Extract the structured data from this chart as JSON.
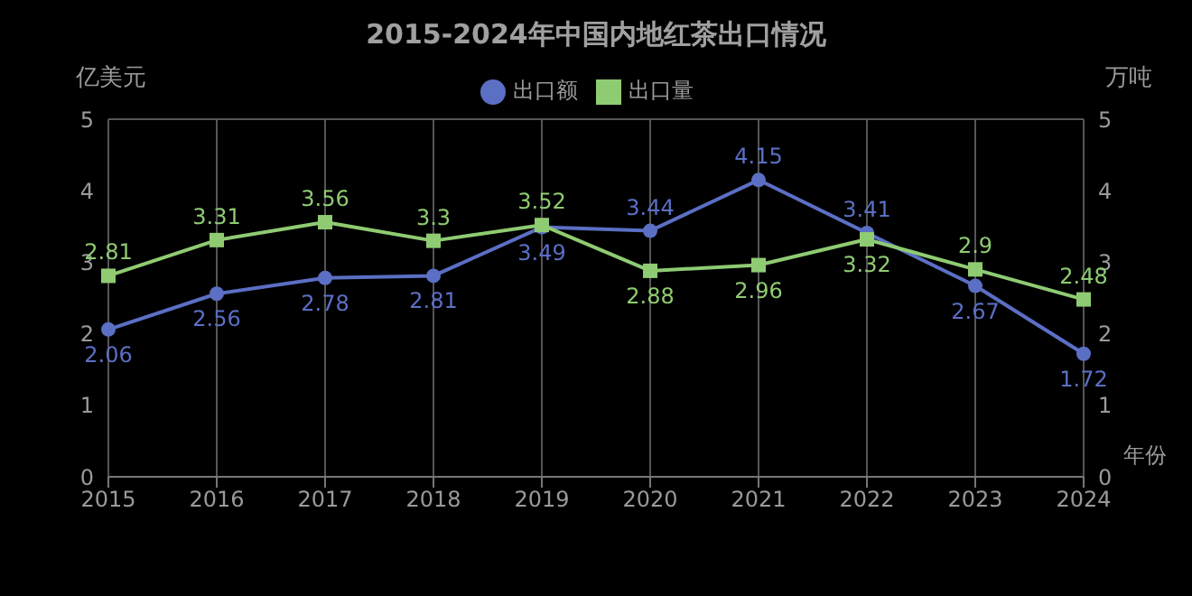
{
  "chart_data": {
    "type": "line",
    "title": "2015-2024年中国内地红茶出口情况",
    "xlabel": "年份",
    "ylabel": "亿美元",
    "y2label": "万吨",
    "categories": [
      "2015",
      "2016",
      "2017",
      "2018",
      "2019",
      "2020",
      "2021",
      "2022",
      "2023",
      "2024"
    ],
    "series": [
      {
        "name": "出口额",
        "color": "#5b6fc4",
        "marker": "circle",
        "values": [
          2.06,
          2.56,
          2.78,
          2.81,
          3.49,
          3.44,
          4.15,
          3.41,
          2.67,
          1.72
        ]
      },
      {
        "name": "出口量",
        "color": "#8fcb72",
        "marker": "square",
        "axis": "y2",
        "values": [
          2.81,
          3.31,
          3.56,
          3.3,
          3.52,
          2.88,
          2.96,
          3.32,
          2.9,
          2.48
        ]
      }
    ],
    "ylim": [
      0,
      5
    ],
    "yticks": [
      0,
      1,
      2,
      3,
      4,
      5
    ],
    "y2lim": [
      0,
      5
    ],
    "y2ticks": [
      0,
      1,
      2,
      3,
      4,
      5
    ],
    "grid": true,
    "legend": "top",
    "data_labels": true
  }
}
